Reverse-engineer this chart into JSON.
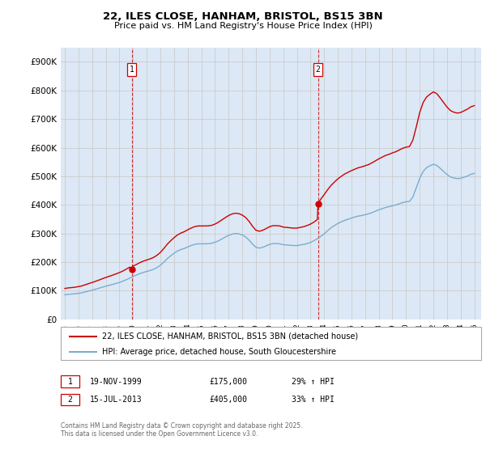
{
  "title": "22, ILES CLOSE, HANHAM, BRISTOL, BS15 3BN",
  "subtitle": "Price paid vs. HM Land Registry's House Price Index (HPI)",
  "fig_bg_color": "#ffffff",
  "plot_bg_color": "#dce8f5",
  "ylim": [
    0,
    950000
  ],
  "yticks": [
    0,
    100000,
    200000,
    300000,
    400000,
    500000,
    600000,
    700000,
    800000,
    900000
  ],
  "ytick_labels": [
    "£0",
    "£100K",
    "£200K",
    "£300K",
    "£400K",
    "£500K",
    "£600K",
    "£700K",
    "£800K",
    "£900K"
  ],
  "legend_label_red": "22, ILES CLOSE, HANHAM, BRISTOL, BS15 3BN (detached house)",
  "legend_label_blue": "HPI: Average price, detached house, South Gloucestershire",
  "sale1_date": "19-NOV-1999",
  "sale1_price": "£175,000",
  "sale1_hpi": "29% ↑ HPI",
  "sale2_date": "15-JUL-2013",
  "sale2_price": "£405,000",
  "sale2_hpi": "33% ↑ HPI",
  "footnote": "Contains HM Land Registry data © Crown copyright and database right 2025.\nThis data is licensed under the Open Government Licence v3.0.",
  "red_color": "#cc0000",
  "blue_color": "#7aadcf",
  "sale1_x": 1999.9,
  "sale1_y": 175000,
  "sale2_x": 2013.55,
  "sale2_y": 405000,
  "xlim_left": 1994.7,
  "xlim_right": 2025.5,
  "xticks": [
    1995,
    1996,
    1997,
    1998,
    1999,
    2000,
    2001,
    2002,
    2003,
    2004,
    2005,
    2006,
    2007,
    2008,
    2009,
    2010,
    2011,
    2012,
    2013,
    2014,
    2015,
    2016,
    2017,
    2018,
    2019,
    2020,
    2021,
    2022,
    2023,
    2024,
    2025
  ],
  "sale1_vline_x": 1999.9,
  "sale2_vline_x": 2013.55,
  "hpi_quarterly": [
    [
      1995.0,
      86000
    ],
    [
      1995.25,
      87500
    ],
    [
      1995.5,
      88500
    ],
    [
      1995.75,
      89500
    ],
    [
      1996.0,
      91000
    ],
    [
      1996.25,
      93000
    ],
    [
      1996.5,
      96000
    ],
    [
      1996.75,
      99000
    ],
    [
      1997.0,
      102000
    ],
    [
      1997.25,
      105500
    ],
    [
      1997.5,
      109000
    ],
    [
      1997.75,
      112500
    ],
    [
      1998.0,
      116000
    ],
    [
      1998.25,
      119000
    ],
    [
      1998.5,
      122000
    ],
    [
      1998.75,
      125500
    ],
    [
      1999.0,
      129000
    ],
    [
      1999.25,
      133500
    ],
    [
      1999.5,
      138500
    ],
    [
      1999.75,
      144000
    ],
    [
      2000.0,
      150000
    ],
    [
      2000.25,
      155000
    ],
    [
      2000.5,
      160000
    ],
    [
      2000.75,
      164000
    ],
    [
      2001.0,
      167500
    ],
    [
      2001.25,
      171000
    ],
    [
      2001.5,
      175000
    ],
    [
      2001.75,
      181000
    ],
    [
      2002.0,
      189000
    ],
    [
      2002.25,
      200000
    ],
    [
      2002.5,
      212000
    ],
    [
      2002.75,
      222000
    ],
    [
      2003.0,
      231000
    ],
    [
      2003.25,
      239000
    ],
    [
      2003.5,
      244000
    ],
    [
      2003.75,
      248000
    ],
    [
      2004.0,
      253000
    ],
    [
      2004.25,
      258000
    ],
    [
      2004.5,
      262000
    ],
    [
      2004.75,
      264000
    ],
    [
      2005.0,
      264000
    ],
    [
      2005.25,
      264000
    ],
    [
      2005.5,
      264500
    ],
    [
      2005.75,
      266000
    ],
    [
      2006.0,
      269500
    ],
    [
      2006.25,
      274500
    ],
    [
      2006.5,
      281000
    ],
    [
      2006.75,
      287500
    ],
    [
      2007.0,
      293500
    ],
    [
      2007.25,
      298000
    ],
    [
      2007.5,
      300000
    ],
    [
      2007.75,
      299000
    ],
    [
      2008.0,
      295000
    ],
    [
      2008.25,
      288000
    ],
    [
      2008.5,
      277000
    ],
    [
      2008.75,
      263000
    ],
    [
      2009.0,
      252000
    ],
    [
      2009.25,
      249000
    ],
    [
      2009.5,
      252000
    ],
    [
      2009.75,
      257000
    ],
    [
      2010.0,
      262000
    ],
    [
      2010.25,
      265000
    ],
    [
      2010.5,
      265000
    ],
    [
      2010.75,
      264000
    ],
    [
      2011.0,
      261000
    ],
    [
      2011.25,
      260000
    ],
    [
      2011.5,
      259000
    ],
    [
      2011.75,
      258000
    ],
    [
      2012.0,
      258000
    ],
    [
      2012.25,
      260000
    ],
    [
      2012.5,
      262000
    ],
    [
      2012.75,
      265000
    ],
    [
      2013.0,
      269000
    ],
    [
      2013.25,
      275000
    ],
    [
      2013.5,
      282000
    ],
    [
      2013.75,
      290000
    ],
    [
      2014.0,
      299000
    ],
    [
      2014.25,
      310000
    ],
    [
      2014.5,
      320000
    ],
    [
      2014.75,
      328000
    ],
    [
      2015.0,
      335000
    ],
    [
      2015.25,
      341000
    ],
    [
      2015.5,
      346000
    ],
    [
      2015.75,
      350000
    ],
    [
      2016.0,
      354000
    ],
    [
      2016.25,
      358000
    ],
    [
      2016.5,
      361000
    ],
    [
      2016.75,
      363000
    ],
    [
      2017.0,
      366000
    ],
    [
      2017.25,
      369000
    ],
    [
      2017.5,
      373000
    ],
    [
      2017.75,
      378000
    ],
    [
      2018.0,
      383000
    ],
    [
      2018.25,
      387000
    ],
    [
      2018.5,
      391000
    ],
    [
      2018.75,
      394000
    ],
    [
      2019.0,
      397000
    ],
    [
      2019.25,
      400000
    ],
    [
      2019.5,
      404000
    ],
    [
      2019.75,
      408000
    ],
    [
      2020.0,
      411000
    ],
    [
      2020.25,
      412000
    ],
    [
      2020.5,
      428000
    ],
    [
      2020.75,
      460000
    ],
    [
      2021.0,
      493000
    ],
    [
      2021.25,
      517000
    ],
    [
      2021.5,
      530000
    ],
    [
      2021.75,
      537000
    ],
    [
      2022.0,
      542000
    ],
    [
      2022.25,
      538000
    ],
    [
      2022.5,
      528000
    ],
    [
      2022.75,
      517000
    ],
    [
      2023.0,
      506000
    ],
    [
      2023.25,
      498000
    ],
    [
      2023.5,
      494000
    ],
    [
      2023.75,
      492000
    ],
    [
      2024.0,
      493000
    ],
    [
      2024.25,
      497000
    ],
    [
      2024.5,
      501000
    ],
    [
      2024.75,
      507000
    ],
    [
      2025.0,
      510000
    ]
  ],
  "red_quarterly": [
    [
      1995.0,
      108000
    ],
    [
      1995.25,
      110000
    ],
    [
      1995.5,
      111000
    ],
    [
      1995.75,
      112500
    ],
    [
      1996.0,
      114500
    ],
    [
      1996.25,
      117000
    ],
    [
      1996.5,
      121000
    ],
    [
      1996.75,
      125000
    ],
    [
      1997.0,
      129000
    ],
    [
      1997.25,
      133000
    ],
    [
      1997.5,
      137500
    ],
    [
      1997.75,
      142000
    ],
    [
      1998.0,
      146500
    ],
    [
      1998.25,
      150500
    ],
    [
      1998.5,
      154500
    ],
    [
      1998.75,
      159000
    ],
    [
      1999.0,
      163500
    ],
    [
      1999.25,
      169000
    ],
    [
      1999.5,
      175500
    ],
    [
      1999.75,
      182500
    ],
    [
      1999.9,
      175000
    ],
    [
      2000.0,
      186000
    ],
    [
      2000.25,
      192000
    ],
    [
      2000.5,
      198500
    ],
    [
      2000.75,
      203500
    ],
    [
      2001.0,
      207500
    ],
    [
      2001.25,
      211500
    ],
    [
      2001.5,
      216500
    ],
    [
      2001.75,
      224000
    ],
    [
      2002.0,
      234000
    ],
    [
      2002.25,
      247500
    ],
    [
      2002.5,
      262500
    ],
    [
      2002.75,
      274500
    ],
    [
      2003.0,
      285500
    ],
    [
      2003.25,
      295000
    ],
    [
      2003.5,
      301500
    ],
    [
      2003.75,
      306500
    ],
    [
      2004.0,
      313000
    ],
    [
      2004.25,
      319000
    ],
    [
      2004.5,
      324000
    ],
    [
      2004.75,
      326500
    ],
    [
      2005.0,
      326500
    ],
    [
      2005.25,
      326500
    ],
    [
      2005.5,
      327000
    ],
    [
      2005.75,
      328500
    ],
    [
      2006.0,
      333000
    ],
    [
      2006.25,
      339500
    ],
    [
      2006.5,
      347500
    ],
    [
      2006.75,
      355500
    ],
    [
      2007.0,
      363000
    ],
    [
      2007.25,
      368500
    ],
    [
      2007.5,
      371000
    ],
    [
      2007.75,
      369500
    ],
    [
      2008.0,
      364500
    ],
    [
      2008.25,
      356000
    ],
    [
      2008.5,
      342500
    ],
    [
      2008.75,
      325500
    ],
    [
      2009.0,
      311500
    ],
    [
      2009.25,
      308000
    ],
    [
      2009.5,
      311500
    ],
    [
      2009.75,
      317500
    ],
    [
      2010.0,
      324000
    ],
    [
      2010.25,
      327500
    ],
    [
      2010.5,
      327500
    ],
    [
      2010.75,
      326500
    ],
    [
      2011.0,
      322500
    ],
    [
      2011.25,
      321500
    ],
    [
      2011.5,
      320000
    ],
    [
      2011.75,
      319000
    ],
    [
      2012.0,
      319000
    ],
    [
      2012.25,
      321500
    ],
    [
      2012.5,
      324000
    ],
    [
      2012.75,
      328000
    ],
    [
      2013.0,
      333000
    ],
    [
      2013.25,
      340000
    ],
    [
      2013.5,
      349000
    ],
    [
      2013.55,
      405000
    ],
    [
      2013.75,
      420000
    ],
    [
      2014.0,
      436000
    ],
    [
      2014.25,
      453000
    ],
    [
      2014.5,
      468000
    ],
    [
      2014.75,
      480000
    ],
    [
      2015.0,
      491000
    ],
    [
      2015.25,
      500000
    ],
    [
      2015.5,
      508000
    ],
    [
      2015.75,
      514000
    ],
    [
      2016.0,
      520000
    ],
    [
      2016.25,
      525000
    ],
    [
      2016.5,
      530000
    ],
    [
      2016.75,
      533000
    ],
    [
      2017.0,
      537000
    ],
    [
      2017.25,
      541000
    ],
    [
      2017.5,
      547000
    ],
    [
      2017.75,
      554000
    ],
    [
      2018.0,
      561000
    ],
    [
      2018.25,
      567000
    ],
    [
      2018.5,
      573000
    ],
    [
      2018.75,
      577000
    ],
    [
      2019.0,
      582000
    ],
    [
      2019.25,
      586000
    ],
    [
      2019.5,
      592000
    ],
    [
      2019.75,
      598000
    ],
    [
      2020.0,
      602000
    ],
    [
      2020.25,
      604000
    ],
    [
      2020.5,
      627000
    ],
    [
      2020.75,
      673000
    ],
    [
      2021.0,
      723000
    ],
    [
      2021.25,
      758000
    ],
    [
      2021.5,
      777000
    ],
    [
      2021.75,
      787000
    ],
    [
      2022.0,
      795000
    ],
    [
      2022.25,
      789000
    ],
    [
      2022.5,
      774000
    ],
    [
      2022.75,
      758000
    ],
    [
      2023.0,
      742000
    ],
    [
      2023.25,
      730000
    ],
    [
      2023.5,
      724000
    ],
    [
      2023.75,
      721000
    ],
    [
      2024.0,
      723000
    ],
    [
      2024.25,
      729000
    ],
    [
      2024.5,
      735000
    ],
    [
      2024.75,
      743000
    ],
    [
      2025.0,
      747000
    ]
  ]
}
